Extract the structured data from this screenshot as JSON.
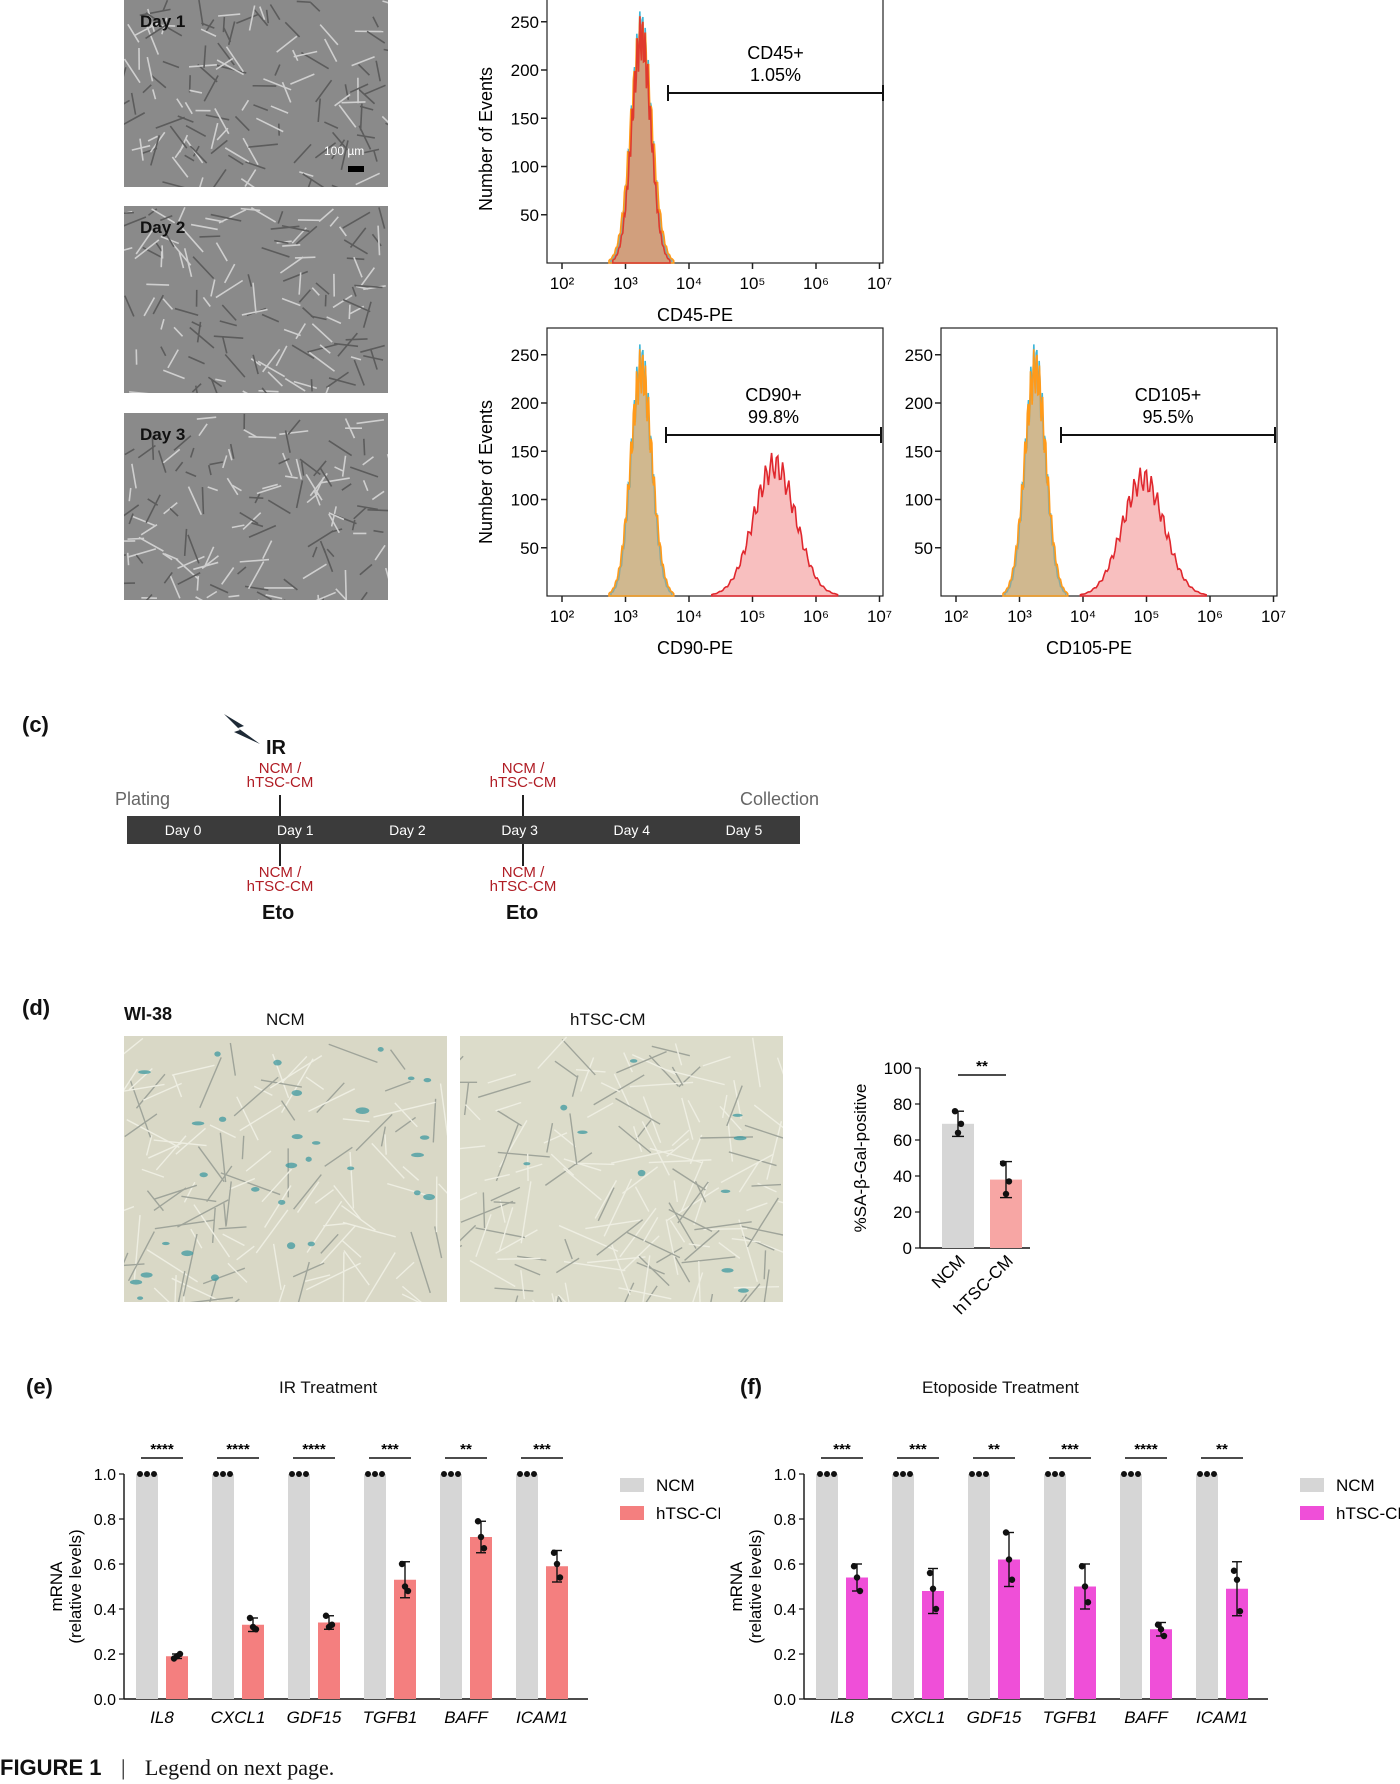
{
  "micrographs": [
    {
      "label": "Day 1",
      "scale_bar": "100 µm"
    },
    {
      "label": "Day 2"
    },
    {
      "label": "Day 3"
    }
  ],
  "flow": {
    "y_axis_title": "Number of Events",
    "y_ticks": [
      "50",
      "100",
      "150",
      "200",
      "250"
    ],
    "x_ticks": [
      "10²",
      "10³",
      "10⁴",
      "10⁵",
      "10⁶",
      "10⁷"
    ],
    "plots": [
      {
        "id": "cd45",
        "gate_title": "CD45+",
        "gate_value": "1.05%",
        "xlabel": "CD45-PE"
      },
      {
        "id": "cd90",
        "gate_title": "CD90+",
        "gate_value": "99.8%",
        "xlabel": "CD90-PE"
      },
      {
        "id": "cd105",
        "gate_title": "CD105+",
        "gate_value": "95.5%",
        "xlabel": "CD105-PE"
      }
    ]
  },
  "panel_c": {
    "label": "(c)",
    "ir": "IR",
    "plating": "Plating",
    "collection": "Collection",
    "days": [
      "Day 0",
      "Day 1",
      "Day 2",
      "Day 3",
      "Day 4",
      "Day 5"
    ],
    "media_line1": "NCM /",
    "media_line2": "hTSC-CM",
    "eto": "Eto"
  },
  "panel_d": {
    "label": "(d)",
    "cell_line": "WI-38",
    "img_left": "NCM",
    "img_right": "hTSC-CM"
  },
  "panel_e": {
    "label": "(e)",
    "title": "IR Treatment"
  },
  "panel_f": {
    "label": "(f)",
    "title": "Etoposide Treatment"
  },
  "caption": {
    "fig": "FIGURE 1",
    "sep": "|",
    "text": "Legend on next page."
  },
  "chart_data": [
    {
      "type": "bar",
      "panel": "d",
      "categories": [
        "NCM",
        "hTSC-CM"
      ],
      "values": [
        69,
        38
      ],
      "errors": [
        7,
        10
      ],
      "points": [
        [
          76,
          64,
          69
        ],
        [
          47,
          30,
          37
        ]
      ],
      "ylabel": "%SA-β-Gal-positive",
      "ylim": [
        0,
        100
      ],
      "yticks": [
        0,
        20,
        40,
        60,
        80,
        100
      ],
      "significance": [
        "**"
      ],
      "colors": [
        "#d6d6d6",
        "#f7a6a4"
      ]
    },
    {
      "type": "bar",
      "panel": "e",
      "categories": [
        "IL8",
        "CXCL1",
        "GDF15",
        "TGFB1",
        "BAFF",
        "ICAM1"
      ],
      "series": [
        {
          "name": "NCM",
          "color": "#d6d6d6",
          "values": [
            1.0,
            1.0,
            1.0,
            1.0,
            1.0,
            1.0
          ]
        },
        {
          "name": "hTSC-CM",
          "color": "#f47f7f",
          "values": [
            0.19,
            0.33,
            0.34,
            0.53,
            0.72,
            0.59
          ],
          "errors": [
            0.01,
            0.03,
            0.03,
            0.08,
            0.07,
            0.07
          ],
          "points": [
            [
              0.18,
              0.19,
              0.2
            ],
            [
              0.36,
              0.32,
              0.31
            ],
            [
              0.37,
              0.32,
              0.33
            ],
            [
              0.6,
              0.5,
              0.48
            ],
            [
              0.79,
              0.72,
              0.67
            ],
            [
              0.65,
              0.6,
              0.54
            ]
          ]
        }
      ],
      "ylabel": "mRNA\n(relative levels)",
      "ylim": [
        0,
        1.0
      ],
      "yticks": [
        "0.0",
        "0.2",
        "0.4",
        "0.6",
        "0.8",
        "1.0"
      ],
      "significance": [
        "****",
        "****",
        "****",
        "***",
        "**",
        "***"
      ]
    },
    {
      "type": "bar",
      "panel": "f",
      "categories": [
        "IL8",
        "CXCL1",
        "GDF15",
        "TGFB1",
        "BAFF",
        "ICAM1"
      ],
      "series": [
        {
          "name": "NCM",
          "color": "#d6d6d6",
          "values": [
            1.0,
            1.0,
            1.0,
            1.0,
            1.0,
            1.0
          ]
        },
        {
          "name": "hTSC-CM",
          "color": "#ef4fd8",
          "values": [
            0.54,
            0.48,
            0.62,
            0.5,
            0.31,
            0.49
          ],
          "errors": [
            0.06,
            0.1,
            0.12,
            0.1,
            0.03,
            0.12
          ],
          "points": [
            [
              0.59,
              0.54,
              0.48
            ],
            [
              0.56,
              0.49,
              0.4
            ],
            [
              0.74,
              0.62,
              0.53
            ],
            [
              0.59,
              0.5,
              0.43
            ],
            [
              0.33,
              0.31,
              0.28
            ],
            [
              0.57,
              0.53,
              0.39
            ]
          ]
        }
      ],
      "ylabel": "mRNA\n(relative levels)",
      "ylim": [
        0,
        1.0
      ],
      "yticks": [
        "0.0",
        "0.2",
        "0.4",
        "0.6",
        "0.8",
        "1.0"
      ],
      "significance": [
        "***",
        "***",
        "**",
        "***",
        "****",
        "**"
      ]
    }
  ]
}
